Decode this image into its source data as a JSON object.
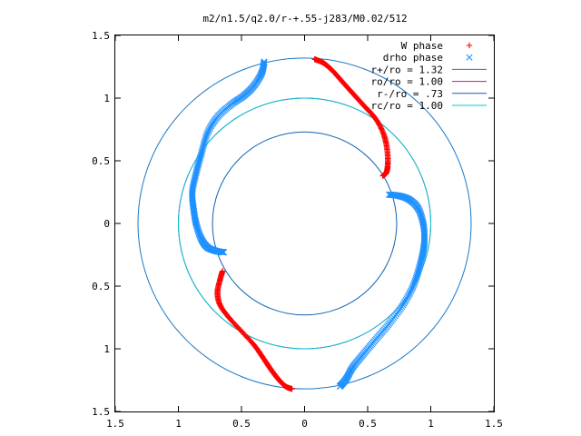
{
  "chart_data": {
    "type": "scatter",
    "title": "m2/n1.5/q2.0/r-+.55-j283/M0.02/512",
    "xlabel": "",
    "ylabel": "",
    "xlim": [
      -1.5,
      1.5
    ],
    "ylim": [
      -1.5,
      1.5
    ],
    "x_ticks": [
      "1.5",
      "1",
      "0.5",
      "0",
      "0.5",
      "1",
      "1.5"
    ],
    "y_ticks": [
      "1.5",
      "1",
      "0.5",
      "0",
      "0.5",
      "1",
      "1.5"
    ],
    "grid": false,
    "legend_position": "top-right",
    "series": [
      {
        "name": "W phase",
        "marker": "plus",
        "color": "#ff0000",
        "arms": [
          [
            [
              0.08,
              1.31
            ],
            [
              0.15,
              1.28
            ],
            [
              0.22,
              1.22
            ],
            [
              0.3,
              1.13
            ],
            [
              0.38,
              1.04
            ],
            [
              0.47,
              0.94
            ],
            [
              0.56,
              0.84
            ],
            [
              0.62,
              0.73
            ],
            [
              0.65,
              0.62
            ],
            [
              0.66,
              0.5
            ],
            [
              0.65,
              0.41
            ],
            [
              0.62,
              0.38
            ]
          ],
          [
            [
              -0.65,
              -0.38
            ],
            [
              -0.67,
              -0.45
            ],
            [
              -0.69,
              -0.55
            ],
            [
              -0.67,
              -0.65
            ],
            [
              -0.6,
              -0.75
            ],
            [
              -0.5,
              -0.86
            ],
            [
              -0.4,
              -0.97
            ],
            [
              -0.33,
              -1.07
            ],
            [
              -0.27,
              -1.16
            ],
            [
              -0.21,
              -1.24
            ],
            [
              -0.15,
              -1.3
            ],
            [
              -0.1,
              -1.32
            ]
          ]
        ]
      },
      {
        "name": "drho phase",
        "marker": "cross",
        "color": "#1e90ff",
        "arms": [
          [
            [
              -0.32,
              1.29
            ],
            [
              -0.34,
              1.2
            ],
            [
              -0.4,
              1.1
            ],
            [
              -0.48,
              1.02
            ],
            [
              -0.58,
              0.95
            ],
            [
              -0.69,
              0.85
            ],
            [
              -0.77,
              0.72
            ],
            [
              -0.82,
              0.55
            ],
            [
              -0.86,
              0.4
            ],
            [
              -0.89,
              0.25
            ],
            [
              -0.88,
              0.12
            ],
            [
              -0.86,
              0.0
            ],
            [
              -0.82,
              -0.12
            ],
            [
              -0.77,
              -0.19
            ],
            [
              -0.7,
              -0.22
            ],
            [
              -0.64,
              -0.23
            ]
          ],
          [
            [
              0.67,
              0.23
            ],
            [
              0.75,
              0.22
            ],
            [
              0.83,
              0.19
            ],
            [
              0.9,
              0.12
            ],
            [
              0.94,
              0.0
            ],
            [
              0.95,
              -0.12
            ],
            [
              0.94,
              -0.22
            ],
            [
              0.91,
              -0.35
            ],
            [
              0.86,
              -0.5
            ],
            [
              0.78,
              -0.65
            ],
            [
              0.67,
              -0.8
            ],
            [
              0.56,
              -0.93
            ],
            [
              0.46,
              -1.05
            ],
            [
              0.38,
              -1.15
            ],
            [
              0.33,
              -1.24
            ],
            [
              0.28,
              -1.3
            ]
          ]
        ]
      }
    ],
    "circles": [
      {
        "name": "r+/ro = 1.32",
        "radius": 1.32,
        "color": "#1878c8"
      },
      {
        "name": "ro/ro = 1.00",
        "radius": 1.0,
        "color": "#b0208f"
      },
      {
        "name": "r-/ro = .73",
        "radius": 0.73,
        "color": "#1060b0"
      },
      {
        "name": "rc/ro = 1.00",
        "radius": 1.0,
        "color": "#00c8d0"
      }
    ]
  }
}
